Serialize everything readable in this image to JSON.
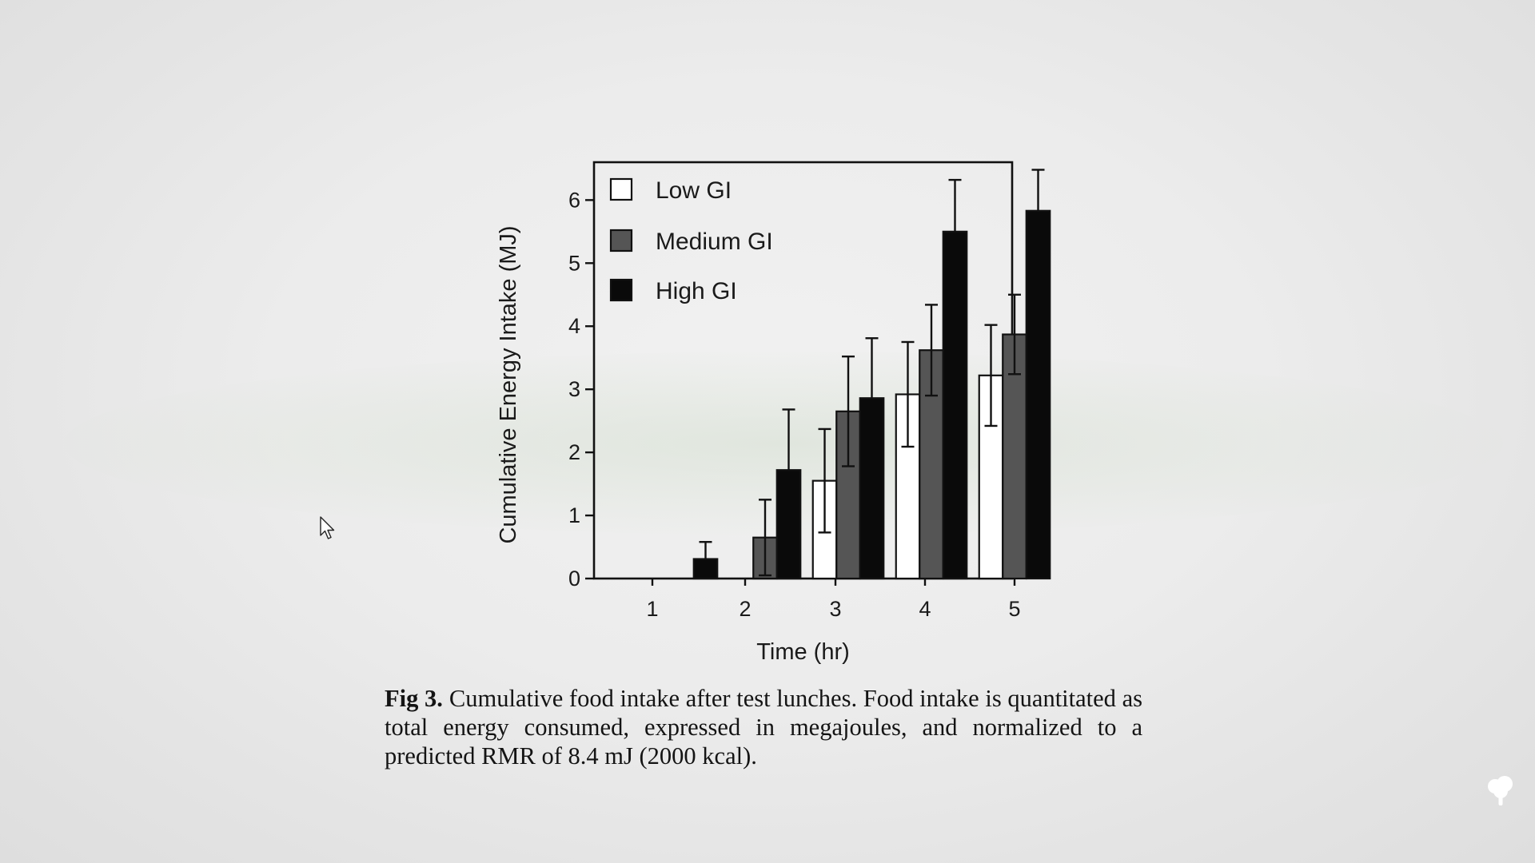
{
  "chart_data": {
    "type": "bar",
    "xlabel": "Time (hr)",
    "ylabel": "Cumulative Energy Intake (MJ)",
    "categories": [
      "1",
      "2",
      "3",
      "4",
      "5"
    ],
    "ylim": [
      0,
      6.6
    ],
    "yticks": [
      "0",
      "1",
      "2",
      "3",
      "4",
      "5",
      "6"
    ],
    "grid": false,
    "legend_position": "top-left",
    "series": [
      {
        "name": "Low  GI",
        "fill": "#ffffff",
        "values": [
          0,
          0,
          1.55,
          2.92,
          3.22
        ],
        "errors": [
          0,
          0,
          0.82,
          0.83,
          0.8
        ]
      },
      {
        "name": "Medium  GI",
        "fill": "#555555",
        "values": [
          0,
          0.65,
          2.65,
          3.62,
          3.87
        ],
        "errors": [
          0,
          0.6,
          0.87,
          0.72,
          0.63
        ]
      },
      {
        "name": "High  GI",
        "fill": "#0a0a0a",
        "values": [
          0.31,
          1.72,
          2.86,
          5.5,
          5.83
        ],
        "errors": [
          0.27,
          0.96,
          0.95,
          0.82,
          0.65
        ]
      }
    ]
  },
  "caption": {
    "label": "Fig 3.",
    "text": "Cumulative food intake after test lunches. Food intake is quantitated as total energy consumed, expressed in megajoules, and normalized to a predicted RMR of 8.4 mJ (2000 kcal)."
  },
  "icons": {
    "cursor": "mouse-pointer-icon",
    "corner": "tree-icon"
  }
}
